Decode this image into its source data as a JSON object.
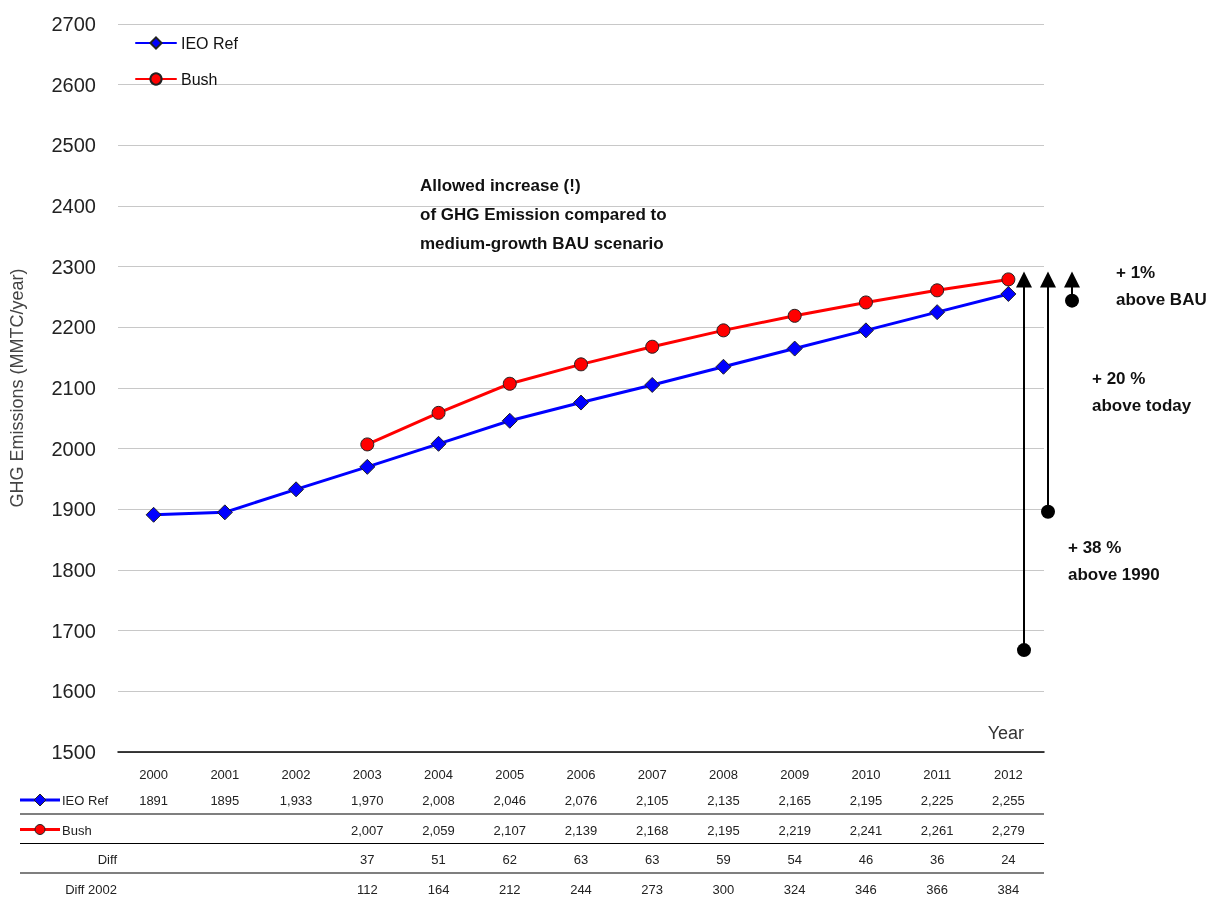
{
  "chart_data": {
    "type": "line",
    "ylabel": "GHG Emissions (MMTC/year)",
    "xlabel": "Year",
    "categories": [
      "2000",
      "2001",
      "2002",
      "2003",
      "2004",
      "2005",
      "2006",
      "2007",
      "2008",
      "2009",
      "2010",
      "2011",
      "2012"
    ],
    "series": [
      {
        "name": "IEO Ref",
        "color": "#0000ff",
        "marker": "diamond",
        "values": [
          1891,
          1895,
          1933,
          1970,
          2008,
          2046,
          2076,
          2105,
          2135,
          2165,
          2195,
          2225,
          2255
        ],
        "value_labels": [
          "1891",
          "1895",
          "1,933",
          "1,970",
          "2,008",
          "2,046",
          "2,076",
          "2,105",
          "2,135",
          "2,165",
          "2,195",
          "2,225",
          "2,255"
        ]
      },
      {
        "name": "Bush",
        "color": "#ff0000",
        "marker": "circle",
        "values": [
          null,
          null,
          null,
          2007,
          2059,
          2107,
          2139,
          2168,
          2195,
          2219,
          2241,
          2261,
          2279
        ],
        "value_labels": [
          null,
          null,
          null,
          "2,007",
          "2,059",
          "2,107",
          "2,139",
          "2,168",
          "2,195",
          "2,219",
          "2,241",
          "2,261",
          "2,279"
        ]
      }
    ],
    "ylim": [
      1500,
      2700
    ],
    "yticks": [
      1500,
      1600,
      1700,
      1800,
      1900,
      2000,
      2100,
      2200,
      2300,
      2400,
      2500,
      2600,
      2700
    ],
    "grid": "y",
    "legend": "top left",
    "line_style": "solid",
    "annotations": [
      "Allowed increase (!)\nof GHG Emission compared to\nmedium-growth BAU scenario",
      "+ 38 %\nabove 1990",
      "+ 20 %\nabove today",
      "+ 1%\nabove BAU",
      "Diff",
      "37",
      "51",
      "62",
      "63",
      "63",
      "59",
      "54",
      "46",
      "36",
      "24",
      "Diff 2002",
      "112",
      "164",
      "212",
      "244",
      "273",
      "300",
      "324",
      "346",
      "366",
      "384"
    ]
  }
}
